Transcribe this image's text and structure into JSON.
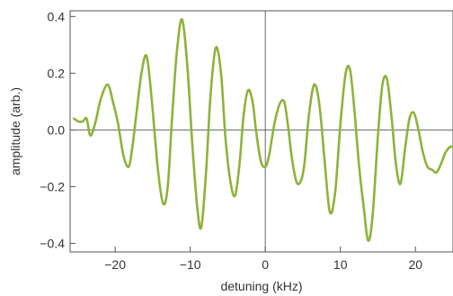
{
  "chart_data": {
    "type": "line",
    "title": "",
    "xlabel": "detuning (kHz)",
    "ylabel": "amplitude (arb.)",
    "xlim": [
      -26,
      25
    ],
    "ylim": [
      -0.43,
      0.42
    ],
    "xticks": [
      -20,
      -10,
      0,
      10,
      20
    ],
    "xtick_labels": [
      "−20",
      "−10",
      "0",
      "10",
      "20"
    ],
    "yticks": [
      -0.4,
      -0.2,
      0.0,
      0.2,
      0.4
    ],
    "ytick_labels": [
      "−0.4",
      "−0.2",
      "0.0",
      "0.2",
      "0.4"
    ],
    "grid": false,
    "zero_lines": true,
    "series": [
      {
        "color": "#8db33a",
        "x": [
          -25.5,
          -24.9,
          -24.3,
          -23.8,
          -23.3,
          -22.6,
          -21.9,
          -21.0,
          -20.3,
          -19.6,
          -18.9,
          -18.2,
          -17.7,
          -17.2,
          -16.5,
          -15.8,
          -15.1,
          -14.3,
          -13.6,
          -13.0,
          -12.4,
          -11.8,
          -11.1,
          -10.4,
          -9.7,
          -9.0,
          -8.5,
          -7.9,
          -7.3,
          -6.6,
          -5.9,
          -5.3,
          -4.6,
          -4.0,
          -3.4,
          -2.9,
          -2.3,
          -1.7,
          -1.2,
          -0.6,
          0.0,
          0.5,
          1.2,
          1.9,
          2.5,
          3.0,
          3.6,
          4.3,
          5.1,
          5.8,
          6.5,
          7.2,
          7.9,
          8.6,
          9.3,
          10.0,
          10.7,
          11.3,
          11.9,
          12.5,
          13.1,
          13.7,
          14.3,
          15.0,
          15.6,
          16.2,
          16.8,
          17.4,
          18.0,
          18.6,
          19.2,
          19.8,
          20.4,
          21.0,
          21.6,
          22.2,
          22.8,
          23.4,
          24.0,
          24.6,
          25.0
        ],
        "y": [
          0.04,
          0.03,
          0.03,
          0.04,
          -0.02,
          0.03,
          0.11,
          0.16,
          0.1,
          0.02,
          -0.09,
          -0.13,
          -0.06,
          0.05,
          0.2,
          0.26,
          0.1,
          -0.14,
          -0.26,
          -0.2,
          0.05,
          0.27,
          0.39,
          0.23,
          -0.06,
          -0.29,
          -0.34,
          -0.15,
          0.12,
          0.29,
          0.2,
          -0.03,
          -0.19,
          -0.23,
          -0.11,
          0.05,
          0.14,
          0.1,
          -0.01,
          -0.11,
          -0.13,
          -0.09,
          0.02,
          0.09,
          0.1,
          0.02,
          -0.11,
          -0.19,
          -0.14,
          0.05,
          0.16,
          0.09,
          -0.11,
          -0.29,
          -0.22,
          0.02,
          0.2,
          0.21,
          0.06,
          -0.13,
          -0.27,
          -0.39,
          -0.3,
          -0.02,
          0.16,
          0.18,
          0.05,
          -0.12,
          -0.19,
          -0.07,
          0.04,
          0.06,
          0.0,
          -0.08,
          -0.13,
          -0.14,
          -0.15,
          -0.12,
          -0.08,
          -0.06,
          -0.06
        ]
      }
    ]
  }
}
